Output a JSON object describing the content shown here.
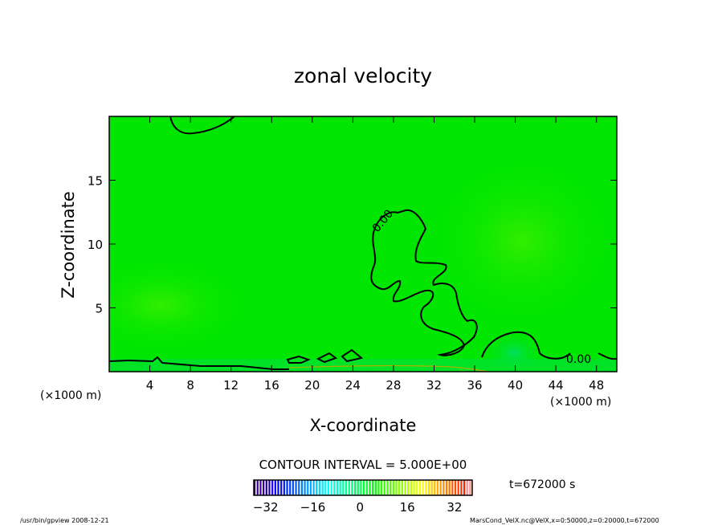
{
  "chart_data": {
    "type": "heatmap",
    "title": "zonal velocity",
    "xlabel": "X-coordinate",
    "ylabel": "Z-coordinate",
    "x_unit_label": "(×1000 m)",
    "y_unit_label": "(×1000 m)",
    "xlim": [
      0,
      50
    ],
    "ylim": [
      0,
      20
    ],
    "xticks": [
      4,
      8,
      12,
      16,
      20,
      24,
      28,
      32,
      36,
      40,
      44,
      48
    ],
    "yticks": [
      5,
      10,
      15
    ],
    "contour_labels": [
      "0.00",
      "0.00"
    ],
    "contour_interval_text": "CONTOUR INTERVAL = 5.000E+00",
    "colorbar": {
      "min": -36,
      "max": 38,
      "ticks": [
        -32,
        -16,
        0,
        16,
        32
      ]
    },
    "time_text": "t=672000 s",
    "field_color": "#00e600"
  },
  "footer": {
    "left": "/usr/bin/gpview   2008-12-21",
    "right": "MarsCond_VelX.nc@VelX,x=0:50000,z=0:20000,t=672000"
  }
}
